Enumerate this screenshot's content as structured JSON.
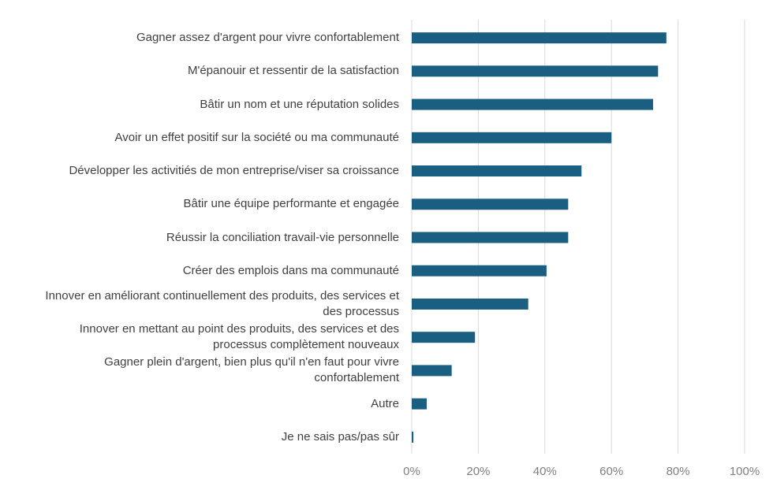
{
  "chart_data": {
    "type": "bar",
    "orientation": "horizontal",
    "title": "",
    "xlabel": "",
    "ylabel": "",
    "xlim": [
      0,
      100
    ],
    "grid": true,
    "bar_color": "#1a5f82",
    "categories": [
      "Gagner assez d'argent pour vivre confortablement",
      "M'épanouir et ressentir de la satisfaction",
      "Bâtir un nom et une réputation solides",
      "Avoir un effet positif sur la société ou ma communauté",
      "Développer les activitiés de mon entreprise/viser sa croissance",
      "Bâtir une équipe performante et engagée",
      "Réussir la conciliation travail-vie personnelle",
      "Créer des emplois dans ma communauté",
      "Innover en améliorant continuellement des produits, des services et des processus",
      "Innover en mettant au point des produits, des services et des processus complètement nouveaux",
      "Gagner plein d'argent, bien plus qu'il n'en faut pour vivre confortablement",
      "Autre",
      "Je ne sais pas/pas sûr"
    ],
    "values": [
      76.5,
      74,
      72.5,
      60,
      51,
      47,
      47,
      40.5,
      35,
      19,
      12,
      4.5,
      0.5
    ],
    "ticks": [
      0,
      20,
      40,
      60,
      80,
      100
    ],
    "tick_labels": [
      "0%",
      "20%",
      "40%",
      "60%",
      "80%",
      "100%"
    ]
  }
}
